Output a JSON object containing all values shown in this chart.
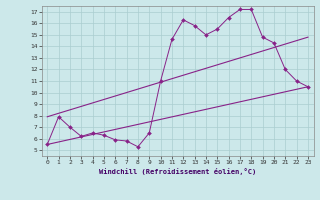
{
  "title": "",
  "xlabel": "Windchill (Refroidissement éolien,°C)",
  "bg_color": "#cce8ea",
  "grid_color": "#aacdd0",
  "line_color": "#882288",
  "xlim": [
    -0.5,
    23.5
  ],
  "ylim": [
    4.5,
    17.5
  ],
  "xticks": [
    0,
    1,
    2,
    3,
    4,
    5,
    6,
    7,
    8,
    9,
    10,
    11,
    12,
    13,
    14,
    15,
    16,
    17,
    18,
    19,
    20,
    21,
    22,
    23
  ],
  "yticks": [
    5,
    6,
    7,
    8,
    9,
    10,
    11,
    12,
    13,
    14,
    15,
    16,
    17
  ],
  "series1_x": [
    0,
    1,
    2,
    3,
    4,
    5,
    6,
    7,
    8,
    9,
    10,
    11,
    12,
    13,
    14,
    15,
    16,
    17,
    18,
    19,
    20,
    21,
    22,
    23
  ],
  "series1_y": [
    5.5,
    7.9,
    7.0,
    6.2,
    6.5,
    6.3,
    5.9,
    5.8,
    5.3,
    6.5,
    11.0,
    14.6,
    16.3,
    15.8,
    15.0,
    15.5,
    16.5,
    17.2,
    17.2,
    14.8,
    14.3,
    12.0,
    11.0,
    10.5
  ],
  "series2_x": [
    0,
    23
  ],
  "series2_y": [
    5.5,
    10.5
  ],
  "series3_x": [
    0,
    23
  ],
  "series3_y": [
    7.9,
    14.8
  ]
}
